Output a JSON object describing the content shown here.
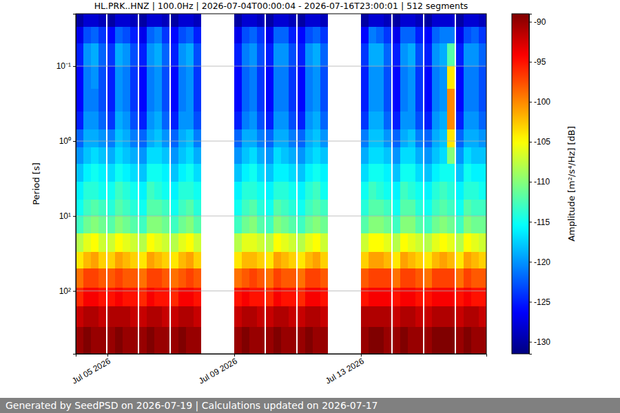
{
  "chart_data": {
    "type": "heatmap",
    "title": "HL.PRK..HNZ | 100.0Hz | 2026-07-04T00:00:04 - 2026-07-16T23:00:01 | 512 segments",
    "y_label": "Period [s]",
    "log": "y",
    "grid": true,
    "xlim": [
      "2026-07-04T00:00",
      "2026-07-16T23:00"
    ],
    "xticks": [
      {
        "value": "2026-07-05T00:00",
        "label": "Jul 05 2026"
      },
      {
        "value": "2026-07-09T00:00",
        "label": "Jul 09 2026"
      },
      {
        "value": "2026-07-13T00:00",
        "label": "Jul 13 2026"
      }
    ],
    "ylim": [
      0.02,
      690
    ],
    "yticks": [
      {
        "value": 0.1,
        "label": "10⁻¹"
      },
      {
        "value": 1,
        "label": "10⁰"
      },
      {
        "value": 10,
        "label": "10¹"
      },
      {
        "value": 100,
        "label": "10²"
      }
    ],
    "y_edges": [
      0.02,
      0.03,
      0.05,
      0.1,
      0.2,
      0.4,
      0.7,
      1.2,
      2,
      3.5,
      6,
      10,
      17,
      30,
      50,
      90,
      160,
      300,
      690
    ],
    "colorbar": {
      "label": "Amplitude [m²/s⁴/Hz] [dB]",
      "lim": [
        -131.5,
        -89
      ],
      "ticks": [
        -90,
        -95,
        -100,
        -105,
        -110,
        -115,
        -120,
        -125,
        -130
      ]
    },
    "segments": [
      {
        "start": "2026-07-04T00:00",
        "end": "2026-07-04T23:00",
        "cells": [
          [
            -130,
            -127,
            -125,
            -126,
            -126,
            -125,
            -122,
            -120,
            -118,
            -116,
            -115,
            -113,
            -108,
            -104,
            -99,
            -96,
            -92,
            -90
          ],
          [
            -128,
            -123,
            -120,
            -121,
            -121,
            -120,
            -119,
            -118,
            -116,
            -114,
            -113,
            -111,
            -106,
            -102,
            -97,
            -94,
            -91,
            -89
          ],
          [
            -128,
            -122,
            -119,
            -120,
            -121,
            -120,
            -119,
            -117,
            -115,
            -114,
            -112,
            -110,
            -105,
            -101,
            -97,
            -94,
            -91,
            -90
          ],
          [
            -129,
            -124,
            -122,
            -123,
            -123,
            -122,
            -120,
            -118,
            -116,
            -115,
            -113,
            -111,
            -107,
            -103,
            -98,
            -95,
            -92,
            -90
          ]
        ]
      },
      {
        "start": "2026-07-05T00:00",
        "end": "2026-07-05T23:00",
        "cells": [
          [
            -130,
            -126,
            -124,
            -125,
            -125,
            -124,
            -121,
            -119,
            -117,
            -115,
            -114,
            -112,
            -107,
            -103,
            -98,
            -95,
            -91,
            -90
          ],
          [
            -128,
            -122,
            -119,
            -120,
            -120,
            -119,
            -118,
            -117,
            -115,
            -113,
            -112,
            -110,
            -105,
            -101,
            -97,
            -94,
            -91,
            -89
          ],
          [
            -128,
            -123,
            -120,
            -121,
            -121,
            -120,
            -119,
            -118,
            -116,
            -114,
            -113,
            -111,
            -106,
            -102,
            -98,
            -95,
            -91,
            -90
          ],
          [
            -129,
            -125,
            -123,
            -124,
            -124,
            -123,
            -121,
            -119,
            -117,
            -115,
            -114,
            -112,
            -107,
            -103,
            -98,
            -95,
            -92,
            -90
          ]
        ]
      },
      {
        "start": "2026-07-06T00:00",
        "end": "2026-07-06T23:00",
        "cells": [
          [
            -130,
            -127,
            -125,
            -126,
            -126,
            -125,
            -122,
            -120,
            -118,
            -116,
            -115,
            -113,
            -108,
            -104,
            -99,
            -96,
            -92,
            -90
          ],
          [
            -128,
            -122,
            -120,
            -121,
            -121,
            -120,
            -119,
            -117,
            -115,
            -113,
            -112,
            -110,
            -105,
            -101,
            -97,
            -94,
            -91,
            -89
          ],
          [
            -128,
            -121,
            -119,
            -120,
            -120,
            -119,
            -118,
            -117,
            -115,
            -114,
            -112,
            -110,
            -106,
            -102,
            -97,
            -95,
            -91,
            -90
          ],
          [
            -129,
            -124,
            -122,
            -123,
            -123,
            -122,
            -120,
            -118,
            -116,
            -115,
            -113,
            -111,
            -107,
            -103,
            -98,
            -95,
            -92,
            -90
          ]
        ]
      },
      {
        "start": "2026-07-07T00:00",
        "end": "2026-07-07T23:00",
        "cells": [
          [
            -130,
            -126,
            -125,
            -126,
            -126,
            -125,
            -122,
            -120,
            -118,
            -116,
            -115,
            -113,
            -108,
            -104,
            -99,
            -96,
            -92,
            -90
          ],
          [
            -128,
            -123,
            -120,
            -121,
            -121,
            -120,
            -119,
            -118,
            -116,
            -114,
            -113,
            -111,
            -106,
            -102,
            -98,
            -94,
            -91,
            -89
          ],
          [
            -128,
            -122,
            -119,
            -120,
            -120,
            -120,
            -118,
            -117,
            -115,
            -114,
            -112,
            -110,
            -105,
            -101,
            -97,
            -94,
            -91,
            -90
          ],
          [
            -129,
            -125,
            -123,
            -124,
            -124,
            -123,
            -121,
            -119,
            -117,
            -115,
            -114,
            -112,
            -107,
            -103,
            -98,
            -95,
            -92,
            -90
          ]
        ]
      },
      {
        "start": "2026-07-09T00:00",
        "end": "2026-07-09T23:00",
        "cells": [
          [
            -130,
            -127,
            -125,
            -126,
            -126,
            -125,
            -122,
            -120,
            -118,
            -116,
            -115,
            -113,
            -108,
            -104,
            -99,
            -95,
            -92,
            -90
          ],
          [
            -128,
            -123,
            -121,
            -122,
            -122,
            -121,
            -119,
            -118,
            -116,
            -114,
            -113,
            -111,
            -106,
            -102,
            -98,
            -94,
            -91,
            -89
          ],
          [
            -128,
            -122,
            -120,
            -121,
            -121,
            -120,
            -119,
            -117,
            -115,
            -114,
            -112,
            -110,
            -106,
            -102,
            -97,
            -95,
            -91,
            -90
          ],
          [
            -129,
            -124,
            -123,
            -124,
            -124,
            -123,
            -121,
            -119,
            -117,
            -115,
            -114,
            -112,
            -107,
            -103,
            -98,
            -95,
            -92,
            -90
          ]
        ]
      },
      {
        "start": "2026-07-10T00:00",
        "end": "2026-07-10T23:00",
        "cells": [
          [
            -130,
            -127,
            -125,
            -126,
            -126,
            -125,
            -122,
            -120,
            -118,
            -116,
            -115,
            -113,
            -108,
            -104,
            -99,
            -96,
            -92,
            -90
          ],
          [
            -128,
            -122,
            -120,
            -121,
            -121,
            -120,
            -119,
            -117,
            -116,
            -114,
            -112,
            -110,
            -105,
            -101,
            -97,
            -94,
            -91,
            -89
          ],
          [
            -128,
            -122,
            -120,
            -121,
            -121,
            -120,
            -119,
            -118,
            -116,
            -114,
            -113,
            -111,
            -106,
            -102,
            -98,
            -95,
            -91,
            -90
          ],
          [
            -129,
            -125,
            -123,
            -124,
            -124,
            -123,
            -121,
            -119,
            -117,
            -115,
            -114,
            -112,
            -107,
            -103,
            -98,
            -95,
            -92,
            -90
          ]
        ]
      },
      {
        "start": "2026-07-11T00:00",
        "end": "2026-07-11T23:00",
        "cells": [
          [
            -130,
            -126,
            -125,
            -126,
            -126,
            -125,
            -122,
            -120,
            -118,
            -116,
            -115,
            -113,
            -108,
            -104,
            -99,
            -96,
            -92,
            -90
          ],
          [
            -128,
            -123,
            -120,
            -121,
            -121,
            -120,
            -119,
            -118,
            -116,
            -114,
            -113,
            -111,
            -106,
            -102,
            -97,
            -94,
            -91,
            -89
          ],
          [
            -128,
            -122,
            -119,
            -120,
            -120,
            -119,
            -118,
            -117,
            -115,
            -113,
            -112,
            -110,
            -105,
            -101,
            -97,
            -94,
            -91,
            -90
          ],
          [
            -129,
            -124,
            -122,
            -123,
            -123,
            -122,
            -120,
            -118,
            -116,
            -115,
            -113,
            -111,
            -107,
            -103,
            -98,
            -95,
            -92,
            -90
          ]
        ]
      },
      {
        "start": "2026-07-13T00:00",
        "end": "2026-07-13T23:00",
        "cells": [
          [
            -130,
            -126,
            -124,
            -125,
            -125,
            -124,
            -121,
            -119,
            -117,
            -115,
            -114,
            -112,
            -107,
            -103,
            -98,
            -95,
            -91,
            -90
          ],
          [
            -128,
            -121,
            -119,
            -120,
            -120,
            -119,
            -118,
            -117,
            -115,
            -113,
            -112,
            -110,
            -105,
            -101,
            -97,
            -94,
            -91,
            -89
          ],
          [
            -128,
            -122,
            -119,
            -120,
            -120,
            -119,
            -118,
            -117,
            -115,
            -114,
            -112,
            -110,
            -105,
            -101,
            -97,
            -94,
            -91,
            -89
          ],
          [
            -129,
            -124,
            -122,
            -123,
            -123,
            -122,
            -120,
            -118,
            -116,
            -115,
            -113,
            -111,
            -106,
            -102,
            -97,
            -94,
            -91,
            -90
          ]
        ]
      },
      {
        "start": "2026-07-14T00:00",
        "end": "2026-07-14T23:00",
        "cells": [
          [
            -130,
            -127,
            -125,
            -126,
            -126,
            -125,
            -122,
            -120,
            -118,
            -116,
            -115,
            -113,
            -108,
            -104,
            -99,
            -95,
            -92,
            -90
          ],
          [
            -128,
            -122,
            -120,
            -121,
            -121,
            -120,
            -119,
            -117,
            -115,
            -113,
            -112,
            -110,
            -105,
            -101,
            -97,
            -94,
            -91,
            -89
          ],
          [
            -128,
            -122,
            -119,
            -120,
            -120,
            -120,
            -118,
            -117,
            -115,
            -114,
            -112,
            -110,
            -106,
            -102,
            -97,
            -94,
            -91,
            -90
          ],
          [
            -129,
            -125,
            -123,
            -124,
            -124,
            -123,
            -121,
            -119,
            -117,
            -115,
            -114,
            -112,
            -107,
            -103,
            -98,
            -95,
            -92,
            -90
          ]
        ]
      },
      {
        "start": "2026-07-15T00:00",
        "end": "2026-07-15T23:00",
        "cells": [
          [
            -130,
            -126,
            -125,
            -126,
            -126,
            -125,
            -122,
            -120,
            -118,
            -116,
            -115,
            -113,
            -108,
            -104,
            -99,
            -95,
            -92,
            -90
          ],
          [
            -128,
            -122,
            -120,
            -121,
            -121,
            -120,
            -119,
            -118,
            -116,
            -114,
            -113,
            -111,
            -106,
            -102,
            -97,
            -94,
            -91,
            -89
          ],
          [
            -128,
            -121,
            -119,
            -120,
            -120,
            -119,
            -118,
            -117,
            -115,
            -113,
            -112,
            -110,
            -105,
            -101,
            -97,
            -94,
            -91,
            -89
          ],
          [
            -128,
            -121,
            -112,
            -104,
            -100,
            -100,
            -104,
            -110,
            -115,
            -114,
            -113,
            -111,
            -106,
            -102,
            -97,
            -94,
            -91,
            -89
          ]
        ]
      },
      {
        "start": "2026-07-16T00:00",
        "end": "2026-07-16T23:00",
        "cells": [
          [
            -130,
            -127,
            -125,
            -126,
            -126,
            -125,
            -122,
            -120,
            -118,
            -116,
            -115,
            -113,
            -108,
            -104,
            -99,
            -95,
            -92,
            -90
          ],
          [
            -128,
            -123,
            -120,
            -121,
            -121,
            -120,
            -119,
            -117,
            -115,
            -114,
            -112,
            -110,
            -105,
            -101,
            -97,
            -94,
            -91,
            -89
          ],
          [
            -128,
            -122,
            -120,
            -121,
            -121,
            -120,
            -119,
            -118,
            -116,
            -114,
            -113,
            -111,
            -106,
            -102,
            -98,
            -95,
            -91,
            -90
          ],
          [
            -129,
            -124,
            -122,
            -123,
            -123,
            -122,
            -120,
            -118,
            -116,
            -115,
            -113,
            -111,
            -107,
            -103,
            -98,
            -95,
            -92,
            -90
          ]
        ]
      }
    ]
  },
  "footer": "Generated by SeedPSD on 2026-07-19 | Calculations updated on 2026-07-17"
}
